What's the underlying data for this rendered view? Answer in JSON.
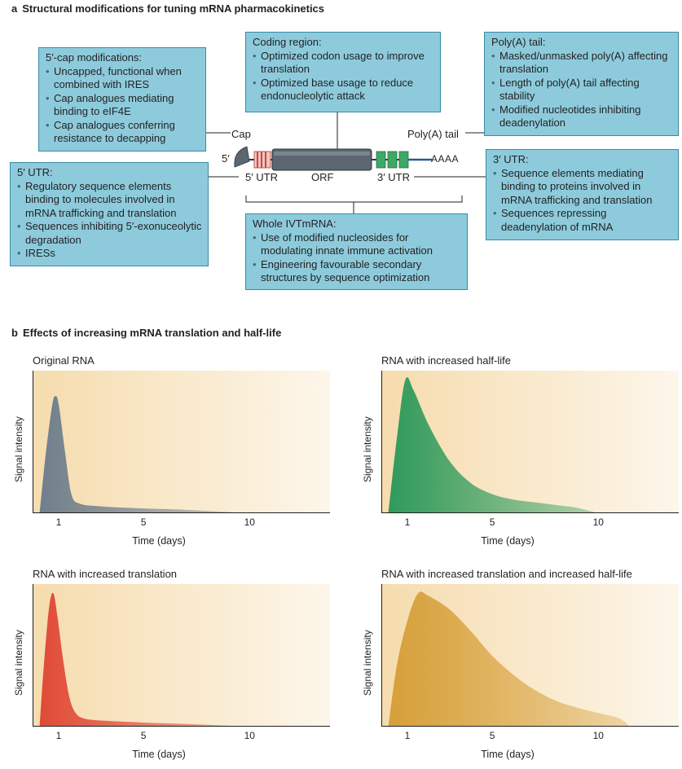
{
  "panel_a": {
    "letter": "a",
    "title": "Structural modifications for tuning mRNA pharmacokinetics",
    "boxes": {
      "cap": {
        "title": "5′-cap modifications:",
        "items": [
          "Uncapped, functional when combined with IRES",
          "Cap analogues mediating binding to eIF4E",
          "Cap analogues conferring resistance to decapping"
        ]
      },
      "coding": {
        "title": "Coding region:",
        "items": [
          "Optimized codon usage to improve translation",
          "Optimized base usage to reduce endonucleolytic attack"
        ]
      },
      "polya": {
        "title": "Poly(A) tail:",
        "items": [
          "Masked/unmasked poly(A) affecting translation",
          "Length of poly(A) tail affecting stability",
          "Modified nucleotides inhibiting deadenylation"
        ]
      },
      "utr5": {
        "title": "5′ UTR:",
        "items": [
          "Regulatory sequence elements binding to molecules involved in mRNA trafficking and translation",
          "Sequences inhibiting 5′-exonuceolytic degradation",
          "IRESs"
        ]
      },
      "utr3": {
        "title": "3′ UTR:",
        "items": [
          "Sequence elements mediating binding to proteins involved in mRNA trafficking and translation",
          "Sequences repressing deadenylation of mRNA"
        ]
      },
      "whole": {
        "title": "Whole IVTmRNA:",
        "items": [
          "Use of modified nucleosides  for modulating innate immune activation",
          "Engineering favourable secondary structures by sequence optimization"
        ]
      }
    },
    "labels": {
      "cap": "Cap",
      "five_prime": "5′",
      "polya": "Poly(A) tail",
      "aaaa": "AAAA",
      "utr5": "5′ UTR",
      "orf": "ORF",
      "utr3": "3′ UTR"
    },
    "colors": {
      "box_fill": "#8dcbdc",
      "box_border": "#3a8aa3",
      "orf": "#5c6670",
      "utr5_stripes": "#d2443a",
      "utr3_blocks": "#3fa866",
      "tail": "#2c5a8a"
    }
  },
  "panel_b": {
    "letter": "b",
    "title": "Effects of increasing mRNA translation and half-life",
    "ylabel": "Signal intensity",
    "xlabel": "Time (days)"
  },
  "chart_data": [
    {
      "type": "area",
      "title": "Original RNA",
      "xlabel": "Time (days)",
      "ylabel": "Signal intensity",
      "xticks": [
        1,
        5,
        10
      ],
      "color": "#6f7f8c",
      "x": [
        0.1,
        0.4,
        0.7,
        0.85,
        1,
        1.3,
        1.6,
        2,
        3,
        5,
        7,
        10
      ],
      "y": [
        0.0,
        0.45,
        0.8,
        0.86,
        0.8,
        0.45,
        0.14,
        0.07,
        0.05,
        0.035,
        0.025,
        0.0
      ]
    },
    {
      "type": "area",
      "title": "RNA with increased half-life",
      "xlabel": "Time (days)",
      "ylabel": "Signal intensity",
      "xticks": [
        1,
        5,
        10
      ],
      "color": "#2f9a5c",
      "x": [
        0.1,
        0.5,
        0.9,
        1.3,
        2,
        3,
        4,
        5,
        6,
        7,
        8,
        9,
        10
      ],
      "y": [
        0.0,
        0.55,
        0.98,
        0.9,
        0.65,
        0.38,
        0.22,
        0.14,
        0.1,
        0.08,
        0.06,
        0.04,
        0.0
      ]
    },
    {
      "type": "area",
      "title": "RNA with increased translation",
      "xlabel": "Time (days)",
      "ylabel": "Signal intensity",
      "xticks": [
        1,
        5,
        10
      ],
      "color": "#e04a38",
      "x": [
        0.1,
        0.3,
        0.55,
        0.75,
        0.95,
        1.2,
        1.5,
        1.8,
        2.2,
        3,
        5,
        7,
        10
      ],
      "y": [
        0.0,
        0.45,
        0.88,
        0.98,
        0.8,
        0.5,
        0.22,
        0.1,
        0.06,
        0.045,
        0.03,
        0.02,
        0.0
      ]
    },
    {
      "type": "area",
      "title": "RNA with increased translation and increased half-life",
      "xlabel": "Time (days)",
      "ylabel": "Signal intensity",
      "xticks": [
        1,
        5,
        10
      ],
      "color": "#d6a03a",
      "x": [
        0.1,
        0.5,
        1,
        1.5,
        2,
        3,
        4,
        5,
        6,
        7,
        8,
        9,
        10,
        11,
        11.5
      ],
      "y": [
        0.0,
        0.45,
        0.78,
        0.98,
        0.96,
        0.86,
        0.7,
        0.52,
        0.38,
        0.27,
        0.19,
        0.14,
        0.1,
        0.06,
        0.0
      ]
    }
  ]
}
